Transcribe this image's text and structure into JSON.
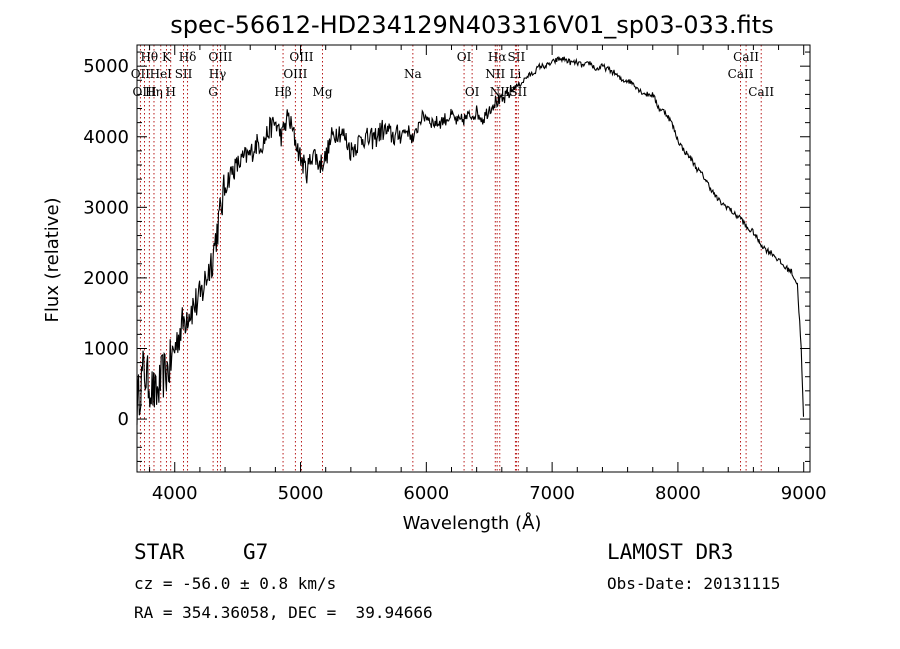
{
  "chart_data": {
    "type": "line",
    "title": "spec-56612-HD234129N403316V01_sp03-033.fits",
    "xlabel": "Wavelength (Å)",
    "ylabel": "Flux (relative)",
    "xlim": [
      3700,
      9050
    ],
    "ylim": [
      -750,
      5300
    ],
    "xticks": [
      4000,
      5000,
      6000,
      7000,
      8000,
      9000
    ],
    "yticks": [
      0,
      1000,
      2000,
      3000,
      4000,
      5000
    ],
    "grid": false,
    "series": [
      {
        "name": "spectrum",
        "x": [
          3700,
          3750,
          3800,
          3850,
          3900,
          3950,
          4000,
          4050,
          4100,
          4150,
          4200,
          4250,
          4300,
          4350,
          4400,
          4450,
          4500,
          4550,
          4600,
          4650,
          4700,
          4750,
          4800,
          4850,
          4900,
          4950,
          5000,
          5050,
          5100,
          5150,
          5200,
          5250,
          5300,
          5350,
          5400,
          5450,
          5500,
          5550,
          5600,
          5650,
          5700,
          5750,
          5800,
          5850,
          5900,
          5950,
          6000,
          6050,
          6100,
          6150,
          6200,
          6250,
          6300,
          6350,
          6400,
          6450,
          6500,
          6550,
          6600,
          6650,
          6700,
          6750,
          6800,
          6850,
          6900,
          6950,
          7000,
          7050,
          7100,
          7150,
          7200,
          7250,
          7300,
          7350,
          7400,
          7450,
          7500,
          7550,
          7600,
          7650,
          7700,
          7750,
          7800,
          7850,
          7900,
          7950,
          8000,
          8050,
          8100,
          8150,
          8200,
          8250,
          8300,
          8350,
          8400,
          8450,
          8500,
          8550,
          8600,
          8650,
          8700,
          8750,
          8800,
          8850,
          8900,
          8950,
          8980,
          9000
        ],
        "y": [
          200,
          700,
          500,
          300,
          600,
          700,
          1000,
          1300,
          1500,
          1600,
          1700,
          2000,
          2300,
          2800,
          3300,
          3500,
          3600,
          3700,
          3750,
          3900,
          3900,
          4100,
          4200,
          4000,
          4300,
          4000,
          3700,
          3500,
          3800,
          3600,
          3700,
          4000,
          4100,
          4000,
          3800,
          3900,
          4000,
          3950,
          4000,
          4100,
          4050,
          4000,
          4050,
          4100,
          3950,
          4250,
          4300,
          4200,
          4200,
          4250,
          4300,
          4200,
          4250,
          4300,
          4350,
          4250,
          4400,
          4500,
          4500,
          4600,
          4700,
          4750,
          4850,
          4900,
          5000,
          5000,
          5050,
          5100,
          5100,
          5050,
          5050,
          5000,
          5050,
          4950,
          5000,
          4950,
          4900,
          4800,
          4800,
          4750,
          4650,
          4600,
          4600,
          4400,
          4350,
          4200,
          3950,
          3800,
          3700,
          3550,
          3450,
          3300,
          3150,
          3050,
          3000,
          2900,
          2850,
          2700,
          2650,
          2500,
          2400,
          2350,
          2250,
          2150,
          2100,
          1900,
          1000,
          -100
        ]
      }
    ],
    "lines": [
      {
        "label": "Hθ",
        "x": 3798,
        "row": 1
      },
      {
        "label": "OII",
        "x": 3727,
        "row": 2
      },
      {
        "label": "OIII",
        "x": 3760,
        "row": 3
      },
      {
        "label": "Hη",
        "x": 3835,
        "row": 3
      },
      {
        "label": "HeI",
        "x": 3889,
        "row": 2
      },
      {
        "label": "K",
        "x": 3934,
        "row": 1
      },
      {
        "label": "H",
        "x": 3968,
        "row": 3
      },
      {
        "label": "SII",
        "x": 4070,
        "row": 2
      },
      {
        "label": "Hδ",
        "x": 4102,
        "row": 1
      },
      {
        "label": "OIII",
        "x": 4363,
        "row": 1
      },
      {
        "label": "Hγ",
        "x": 4340,
        "row": 2
      },
      {
        "label": "G",
        "x": 4305,
        "row": 3
      },
      {
        "label": "Hβ",
        "x": 4861,
        "row": 3
      },
      {
        "label": "OIII",
        "x": 5007,
        "row": 1
      },
      {
        "label": "OIII",
        "x": 4959,
        "row": 2
      },
      {
        "label": "Mg",
        "x": 5175,
        "row": 3
      },
      {
        "label": "Na",
        "x": 5893,
        "row": 2
      },
      {
        "label": "OI",
        "x": 6300,
        "row": 1
      },
      {
        "label": "OI",
        "x": 6364,
        "row": 3
      },
      {
        "label": "Hα",
        "x": 6563,
        "row": 1
      },
      {
        "label": "SII",
        "x": 6716,
        "row": 1
      },
      {
        "label": "NII",
        "x": 6548,
        "row": 2
      },
      {
        "label": "Li",
        "x": 6708,
        "row": 2
      },
      {
        "label": "NII",
        "x": 6584,
        "row": 3
      },
      {
        "label": "SII",
        "x": 6731,
        "row": 3
      },
      {
        "label": "CaII",
        "x": 8542,
        "row": 1
      },
      {
        "label": "CaII",
        "x": 8498,
        "row": 2
      },
      {
        "label": "CaII",
        "x": 8662,
        "row": 3
      }
    ]
  },
  "info": {
    "object_class": "STAR",
    "subclass": "G7",
    "survey": "LAMOST DR3",
    "cz": "cz = -56.0 ± 0.8 km/s",
    "obs_date": "Obs-Date: 20131115",
    "coords": "RA = 354.36058, DEC =  39.94666"
  }
}
